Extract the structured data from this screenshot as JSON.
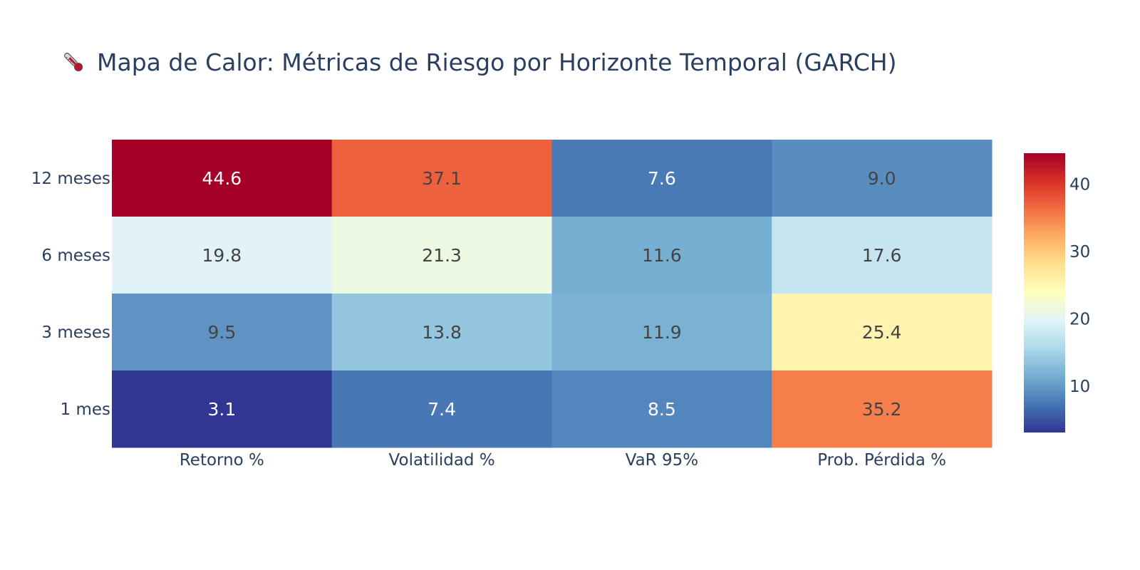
{
  "chart_data": {
    "type": "heatmap",
    "title": "Mapa de Calor: Métricas de Riesgo por Horizonte Temporal (GARCH)",
    "title_icon": "thermometer-icon",
    "x_categories": [
      "Retorno %",
      "Volatilidad %",
      "VaR 95%",
      "Prob. Pérdida %"
    ],
    "y_categories": [
      "12 meses",
      "6 meses",
      "3 meses",
      "1 mes"
    ],
    "z": [
      [
        44.6,
        37.1,
        7.6,
        9.0
      ],
      [
        19.8,
        21.3,
        11.6,
        17.6
      ],
      [
        9.5,
        13.8,
        11.9,
        25.4
      ],
      [
        3.1,
        7.4,
        8.5,
        35.2
      ]
    ],
    "zmin": 3.1,
    "zmax": 44.6,
    "colorscale": "RdYlBu (reversed)",
    "colorscale_stops": [
      [
        0.0,
        "#313695"
      ],
      [
        0.1,
        "#4575b4"
      ],
      [
        0.2,
        "#74add1"
      ],
      [
        0.3,
        "#abd9e9"
      ],
      [
        0.4,
        "#e0f3f8"
      ],
      [
        0.5,
        "#ffffbf"
      ],
      [
        0.6,
        "#fee090"
      ],
      [
        0.7,
        "#fdae61"
      ],
      [
        0.8,
        "#f46d43"
      ],
      [
        0.9,
        "#d73027"
      ],
      [
        1.0,
        "#a50026"
      ]
    ],
    "colorbar_ticks": [
      10,
      20,
      30,
      40
    ],
    "text_color_dark": "#444444",
    "text_color_light": "#ffffff",
    "label_color": "#2a3f5f"
  }
}
